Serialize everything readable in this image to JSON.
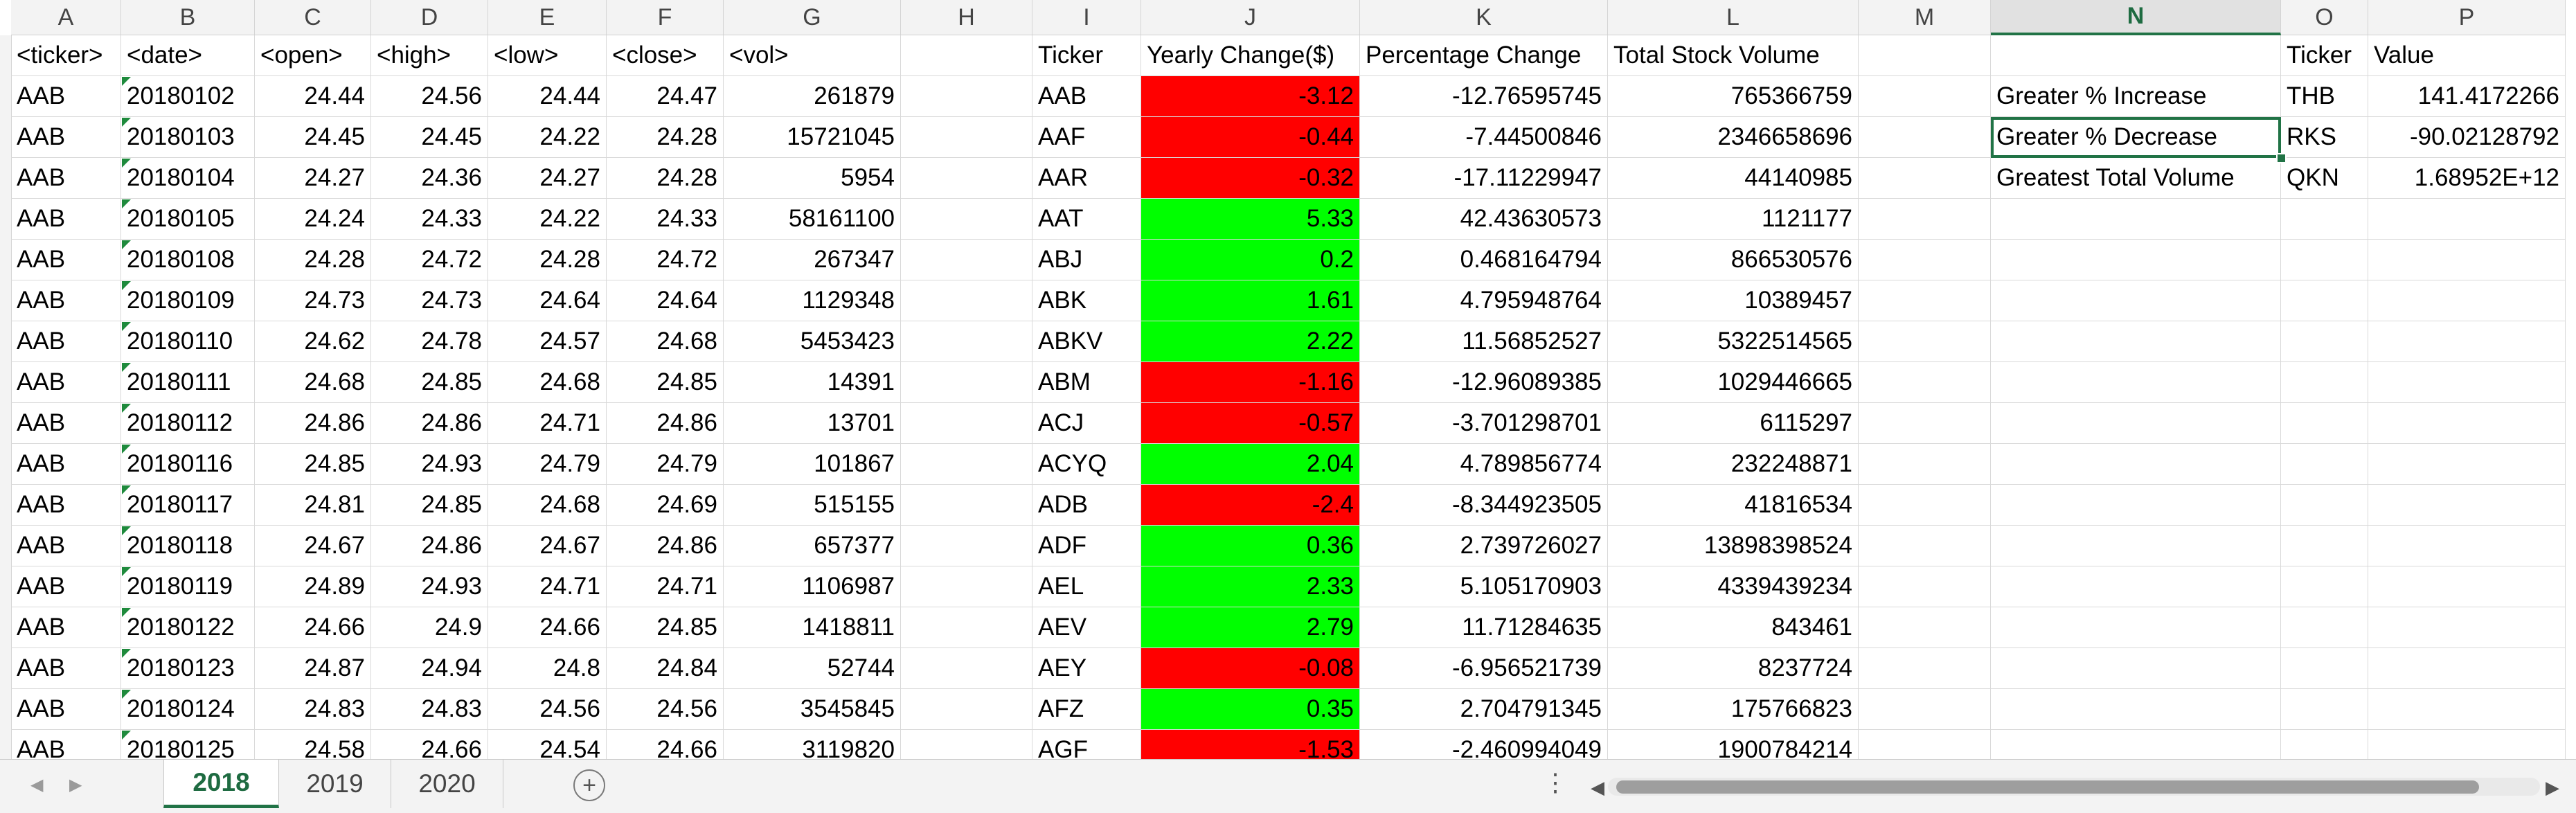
{
  "columns": [
    "A",
    "B",
    "C",
    "D",
    "E",
    "F",
    "G",
    "H",
    "I",
    "J",
    "K",
    "L",
    "M",
    "N",
    "O",
    "P"
  ],
  "selected_column": "N",
  "headers": [
    "<ticker>",
    "<date>",
    "<open>",
    "<high>",
    "<low>",
    "<close>",
    "<vol>",
    "",
    "Ticker",
    "Yearly Change($)",
    "Percentage Change",
    "Total Stock Volume",
    "",
    "",
    "Ticker",
    "Value"
  ],
  "raw_rows": [
    [
      "AAB",
      "20180102",
      "24.44",
      "24.56",
      "24.44",
      "24.47",
      "261879"
    ],
    [
      "AAB",
      "20180103",
      "24.45",
      "24.45",
      "24.22",
      "24.28",
      "15721045"
    ],
    [
      "AAB",
      "20180104",
      "24.27",
      "24.36",
      "24.27",
      "24.28",
      "5954"
    ],
    [
      "AAB",
      "20180105",
      "24.24",
      "24.33",
      "24.22",
      "24.33",
      "58161100"
    ],
    [
      "AAB",
      "20180108",
      "24.28",
      "24.72",
      "24.28",
      "24.72",
      "267347"
    ],
    [
      "AAB",
      "20180109",
      "24.73",
      "24.73",
      "24.64",
      "24.64",
      "1129348"
    ],
    [
      "AAB",
      "20180110",
      "24.62",
      "24.78",
      "24.57",
      "24.68",
      "5453423"
    ],
    [
      "AAB",
      "20180111",
      "24.68",
      "24.85",
      "24.68",
      "24.85",
      "14391"
    ],
    [
      "AAB",
      "20180112",
      "24.86",
      "24.86",
      "24.71",
      "24.86",
      "13701"
    ],
    [
      "AAB",
      "20180116",
      "24.85",
      "24.93",
      "24.79",
      "24.79",
      "101867"
    ],
    [
      "AAB",
      "20180117",
      "24.81",
      "24.85",
      "24.68",
      "24.69",
      "515155"
    ],
    [
      "AAB",
      "20180118",
      "24.67",
      "24.86",
      "24.67",
      "24.86",
      "657377"
    ],
    [
      "AAB",
      "20180119",
      "24.89",
      "24.93",
      "24.71",
      "24.71",
      "1106987"
    ],
    [
      "AAB",
      "20180122",
      "24.66",
      "24.9",
      "24.66",
      "24.85",
      "1418811"
    ],
    [
      "AAB",
      "20180123",
      "24.87",
      "24.94",
      "24.8",
      "24.84",
      "52744"
    ],
    [
      "AAB",
      "20180124",
      "24.83",
      "24.83",
      "24.56",
      "24.56",
      "3545845"
    ],
    [
      "AAB",
      "20180125",
      "24.58",
      "24.66",
      "24.54",
      "24.66",
      "3119820"
    ]
  ],
  "summary_rows": [
    {
      "ticker": "AAB",
      "yearly": "-3.12",
      "pct": "-12.76595745",
      "volume": "765366759",
      "positive": false
    },
    {
      "ticker": "AAF",
      "yearly": "-0.44",
      "pct": "-7.44500846",
      "volume": "2346658696",
      "positive": false
    },
    {
      "ticker": "AAR",
      "yearly": "-0.32",
      "pct": "-17.11229947",
      "volume": "44140985",
      "positive": false
    },
    {
      "ticker": "AAT",
      "yearly": "5.33",
      "pct": "42.43630573",
      "volume": "1121177",
      "positive": true
    },
    {
      "ticker": "ABJ",
      "yearly": "0.2",
      "pct": "0.468164794",
      "volume": "866530576",
      "positive": true
    },
    {
      "ticker": "ABK",
      "yearly": "1.61",
      "pct": "4.795948764",
      "volume": "10389457",
      "positive": true
    },
    {
      "ticker": "ABKV",
      "yearly": "2.22",
      "pct": "11.56852527",
      "volume": "5322514565",
      "positive": true
    },
    {
      "ticker": "ABM",
      "yearly": "-1.16",
      "pct": "-12.96089385",
      "volume": "1029446665",
      "positive": false
    },
    {
      "ticker": "ACJ",
      "yearly": "-0.57",
      "pct": "-3.701298701",
      "volume": "6115297",
      "positive": false
    },
    {
      "ticker": "ACYQ",
      "yearly": "2.04",
      "pct": "4.789856774",
      "volume": "232248871",
      "positive": true
    },
    {
      "ticker": "ADB",
      "yearly": "-2.4",
      "pct": "-8.344923505",
      "volume": "41816534",
      "positive": false
    },
    {
      "ticker": "ADF",
      "yearly": "0.36",
      "pct": "2.739726027",
      "volume": "13898398524",
      "positive": true
    },
    {
      "ticker": "AEL",
      "yearly": "2.33",
      "pct": "5.105170903",
      "volume": "4339439234",
      "positive": true
    },
    {
      "ticker": "AEV",
      "yearly": "2.79",
      "pct": "11.71284635",
      "volume": "843461",
      "positive": true
    },
    {
      "ticker": "AEY",
      "yearly": "-0.08",
      "pct": "-6.956521739",
      "volume": "8237724",
      "positive": false
    },
    {
      "ticker": "AFZ",
      "yearly": "0.35",
      "pct": "2.704791345",
      "volume": "175766823",
      "positive": true
    },
    {
      "ticker": "AGF",
      "yearly": "-1.53",
      "pct": "-2.460994049",
      "volume": "1900784214",
      "positive": false
    }
  ],
  "greatest": [
    {
      "label": "Greater % Increase",
      "ticker": "THB",
      "value": "141.4172266"
    },
    {
      "label": "Greater % Decrease",
      "ticker": "RKS",
      "value": "-90.02128792"
    },
    {
      "label": "Greatest Total Volume",
      "ticker": "QKN",
      "value": "1.68952E+12"
    }
  ],
  "selected_cell": "N3",
  "sheet_tabs": [
    {
      "label": "2018",
      "active": true
    },
    {
      "label": "2019",
      "active": false
    },
    {
      "label": "2020",
      "active": false
    }
  ],
  "colors": {
    "positive": "#00ff00",
    "negative": "#ff0000",
    "accent": "#217346"
  },
  "icons": {
    "add_sheet": "plus-circle-icon",
    "nav_prev": "triangle-left-icon",
    "nav_next": "triangle-right-icon",
    "options": "vertical-ellipsis-icon"
  }
}
